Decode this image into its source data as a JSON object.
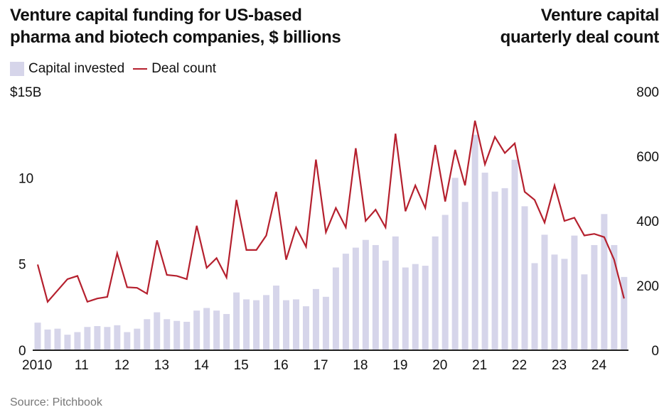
{
  "chart_data": {
    "type": "bar",
    "title_left": "Venture capital funding for US-based pharma and biotech companies, $ billions",
    "title_left_lines": [
      "Venture capital funding for US-based",
      "pharma and biotech companies, $ billions"
    ],
    "title_right_lines": [
      "Venture capital",
      "quarterly deal count"
    ],
    "legend": [
      {
        "label": "Capital invested",
        "kind": "bar",
        "color": "#d6d5ea"
      },
      {
        "label": "Deal count",
        "kind": "line",
        "color": "#b5202e"
      }
    ],
    "source": "Source: Pitchbook",
    "x_tick_labels": [
      "2010",
      "11",
      "12",
      "13",
      "14",
      "15",
      "16",
      "17",
      "18",
      "19",
      "20",
      "21",
      "22",
      "23",
      "24"
    ],
    "left_axis": {
      "ticks": [
        0,
        5,
        10,
        15
      ],
      "tick_labels": [
        "0",
        "5",
        "10",
        "$15B"
      ],
      "ylim": [
        0,
        15
      ]
    },
    "right_axis": {
      "ticks": [
        0,
        200,
        400,
        600,
        800
      ],
      "tick_labels": [
        "0",
        "200",
        "400",
        "600",
        "800"
      ],
      "ylim": [
        0,
        800
      ]
    },
    "grid": false,
    "legend_placement": "top-left",
    "quarters_start": "2010Q1",
    "quarters_end": "2024Q4",
    "series": [
      {
        "name": "Capital invested",
        "type": "bar",
        "axis": "left",
        "unit": "$B",
        "values": [
          1.6,
          1.2,
          1.25,
          0.9,
          1.05,
          1.35,
          1.4,
          1.35,
          1.45,
          1.05,
          1.25,
          1.8,
          2.2,
          1.8,
          1.7,
          1.65,
          2.3,
          2.45,
          2.3,
          2.1,
          3.35,
          2.95,
          2.9,
          3.2,
          3.75,
          2.9,
          2.95,
          2.55,
          3.55,
          3.1,
          4.8,
          5.6,
          5.95,
          6.4,
          6.1,
          5.2,
          6.6,
          4.8,
          5.0,
          4.9,
          6.6,
          7.85,
          10.0,
          8.6,
          12.5,
          10.3,
          9.2,
          9.4,
          11.05,
          8.35,
          5.05,
          6.7,
          5.55,
          5.3,
          6.65,
          4.4,
          6.1,
          7.9,
          6.1,
          4.25
        ]
      },
      {
        "name": "Deal count",
        "type": "line",
        "axis": "right",
        "values": [
          265,
          150,
          185,
          220,
          230,
          150,
          160,
          165,
          300,
          195,
          193,
          175,
          340,
          233,
          230,
          220,
          385,
          255,
          285,
          225,
          465,
          310,
          310,
          355,
          490,
          280,
          380,
          320,
          590,
          365,
          440,
          380,
          625,
          400,
          435,
          380,
          670,
          430,
          510,
          440,
          635,
          460,
          620,
          510,
          710,
          575,
          660,
          610,
          640,
          490,
          465,
          395,
          510,
          400,
          410,
          355,
          360,
          350,
          280,
          160
        ]
      }
    ]
  }
}
